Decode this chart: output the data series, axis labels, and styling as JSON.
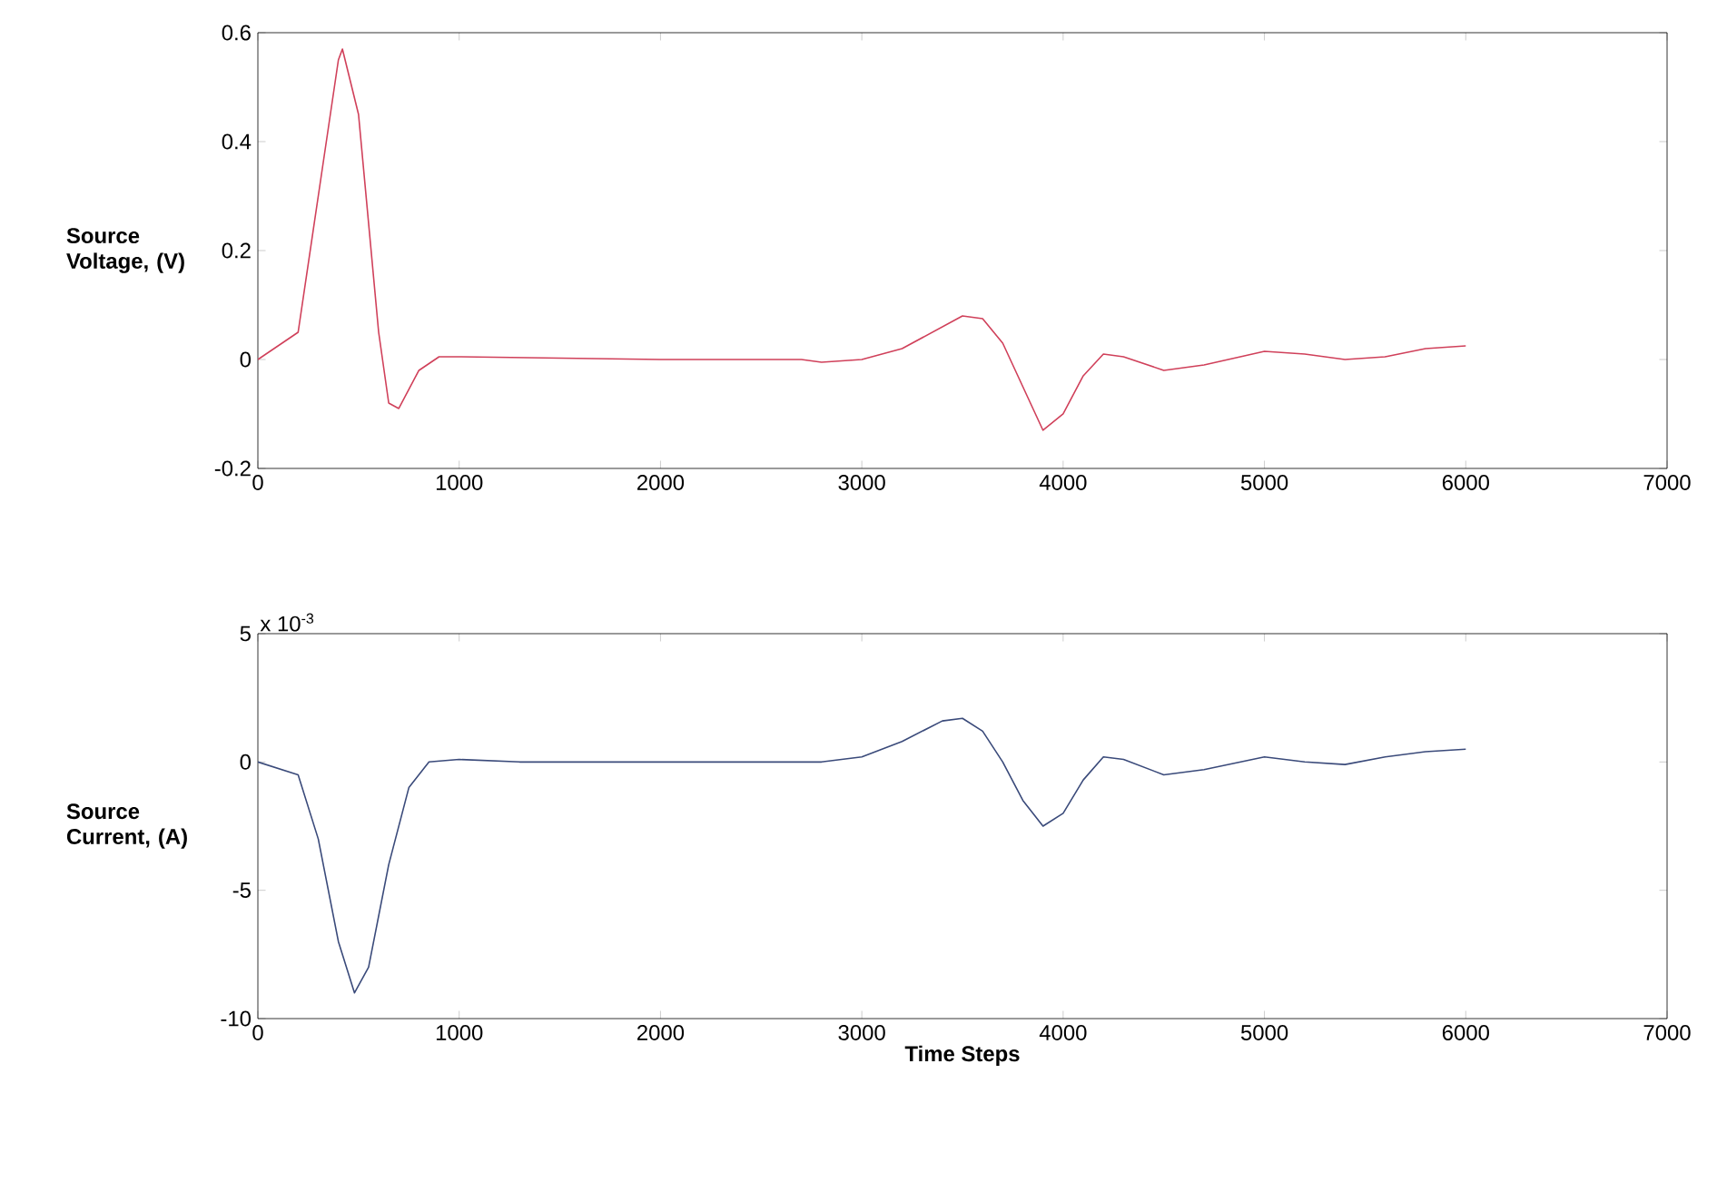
{
  "chart_data": [
    {
      "type": "line",
      "ylabel": "Source Voltage, (V)",
      "x": [
        0,
        200,
        300,
        400,
        420,
        500,
        600,
        650,
        700,
        800,
        900,
        1000,
        2000,
        2700,
        2800,
        3000,
        3200,
        3400,
        3500,
        3600,
        3700,
        3800,
        3900,
        4000,
        4100,
        4200,
        4300,
        4500,
        4700,
        5000,
        5200,
        5400,
        5600,
        5800,
        6000
      ],
      "series": [
        {
          "color": "#d0405a",
          "values": [
            0,
            0.05,
            0.3,
            0.55,
            0.57,
            0.45,
            0.05,
            -0.08,
            -0.09,
            -0.02,
            0.005,
            0.005,
            0,
            0,
            -0.005,
            0,
            0.02,
            0.06,
            0.08,
            0.075,
            0.03,
            -0.05,
            -0.13,
            -0.1,
            -0.03,
            0.01,
            0.005,
            -0.02,
            -0.01,
            0.015,
            0.01,
            0,
            0.005,
            0.02,
            0.025
          ]
        }
      ],
      "xlim": [
        0,
        7000
      ],
      "ylim": [
        -0.2,
        0.6
      ],
      "xticks": [
        0,
        1000,
        2000,
        3000,
        4000,
        5000,
        6000,
        7000
      ],
      "yticks": [
        -0.2,
        0,
        0.2,
        0.4,
        0.6
      ]
    },
    {
      "type": "line",
      "ylabel": "Source Current, (A)",
      "xlabel": "Time Steps",
      "annotations": [
        "x 10$^{-3}$"
      ],
      "x": [
        0,
        200,
        300,
        400,
        480,
        550,
        650,
        750,
        850,
        1000,
        1300,
        2000,
        2800,
        3000,
        3200,
        3400,
        3500,
        3600,
        3700,
        3800,
        3900,
        4000,
        4100,
        4200,
        4300,
        4500,
        4700,
        5000,
        5200,
        5400,
        5600,
        5800,
        6000
      ],
      "series": [
        {
          "color": "#3a4a7a",
          "values": [
            0,
            -0.5,
            -3,
            -7,
            -9,
            -8,
            -4,
            -1,
            0,
            0.1,
            0,
            0,
            0,
            0.2,
            0.8,
            1.6,
            1.7,
            1.2,
            0,
            -1.5,
            -2.5,
            -2,
            -0.7,
            0.2,
            0.1,
            -0.5,
            -0.3,
            0.2,
            0,
            -0.1,
            0.2,
            0.4,
            0.5
          ]
        }
      ],
      "xlim": [
        0,
        7000
      ],
      "ylim": [
        -10,
        5
      ],
      "xticks": [
        0,
        1000,
        2000,
        3000,
        4000,
        5000,
        6000,
        7000
      ],
      "yticks": [
        -10,
        -5,
        0,
        5
      ]
    }
  ]
}
